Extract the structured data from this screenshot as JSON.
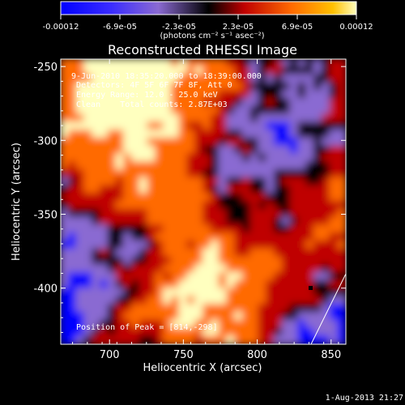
{
  "colorbar": {
    "tick_labels": [
      "-0.00012",
      "-6.9e-05",
      "-2.3e-05",
      "2.3e-05",
      "6.9e-05",
      "0.00012"
    ],
    "unit_label": "(photons cm⁻² s⁻¹ asec⁻²)",
    "range": [
      -0.00012,
      0.00012
    ]
  },
  "chart_data": {
    "type": "heatmap",
    "title": "Reconstructed RHESSI Image",
    "xlabel": "Heliocentric X (arcsec)",
    "ylabel": "Heliocentric Y (arcsec)",
    "xlim": [
      667,
      860
    ],
    "ylim": [
      -438,
      -245
    ],
    "x_ticks": [
      "700",
      "750",
      "800",
      "850"
    ],
    "y_ticks": [
      "-250",
      "-300",
      "-350",
      "-400"
    ],
    "annotations": [
      "9-Jun-2010 18:35:20.000 to 18:39:00.000",
      "Detectors: 4F 5F 6F 7F 8F, Att 0",
      "Energy Range: 12.0 - 25.0 keV",
      "Clean    Total counts: 2.87E+03"
    ],
    "peak_label": "Position of Peak = [814,-298]",
    "colormap_colors": [
      "#0000ff",
      "#8a6ad2",
      "#000000",
      "#bf0000",
      "#ff6a00",
      "#ffffbf"
    ]
  },
  "footer": {
    "timestamp": "1-Aug-2013 21:27"
  }
}
